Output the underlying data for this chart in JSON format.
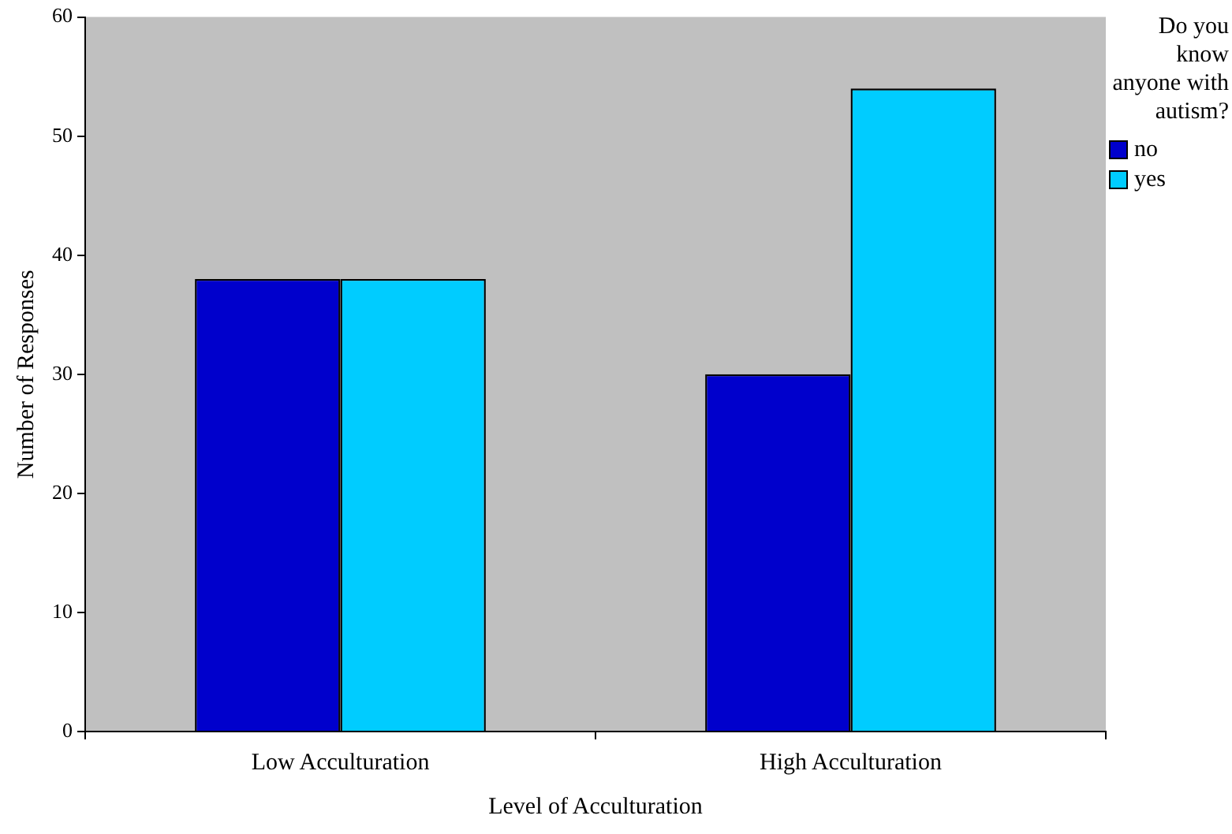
{
  "chart_data": {
    "type": "bar",
    "xlabel": "Level of Acculturation",
    "ylabel": "Number of Responses",
    "legend_title": "Do you know anyone with autism?",
    "categories": [
      "Low Acculturation",
      "High Acculturation"
    ],
    "series": [
      {
        "name": "no",
        "color": "#0000cc",
        "values": [
          38,
          30
        ]
      },
      {
        "name": "yes",
        "color": "#00ccff",
        "values": [
          38,
          54
        ]
      }
    ],
    "ylim": [
      0,
      60
    ],
    "yticks": [
      0,
      10,
      20,
      30,
      40,
      50,
      60
    ],
    "grid": false,
    "legend": "top right"
  }
}
